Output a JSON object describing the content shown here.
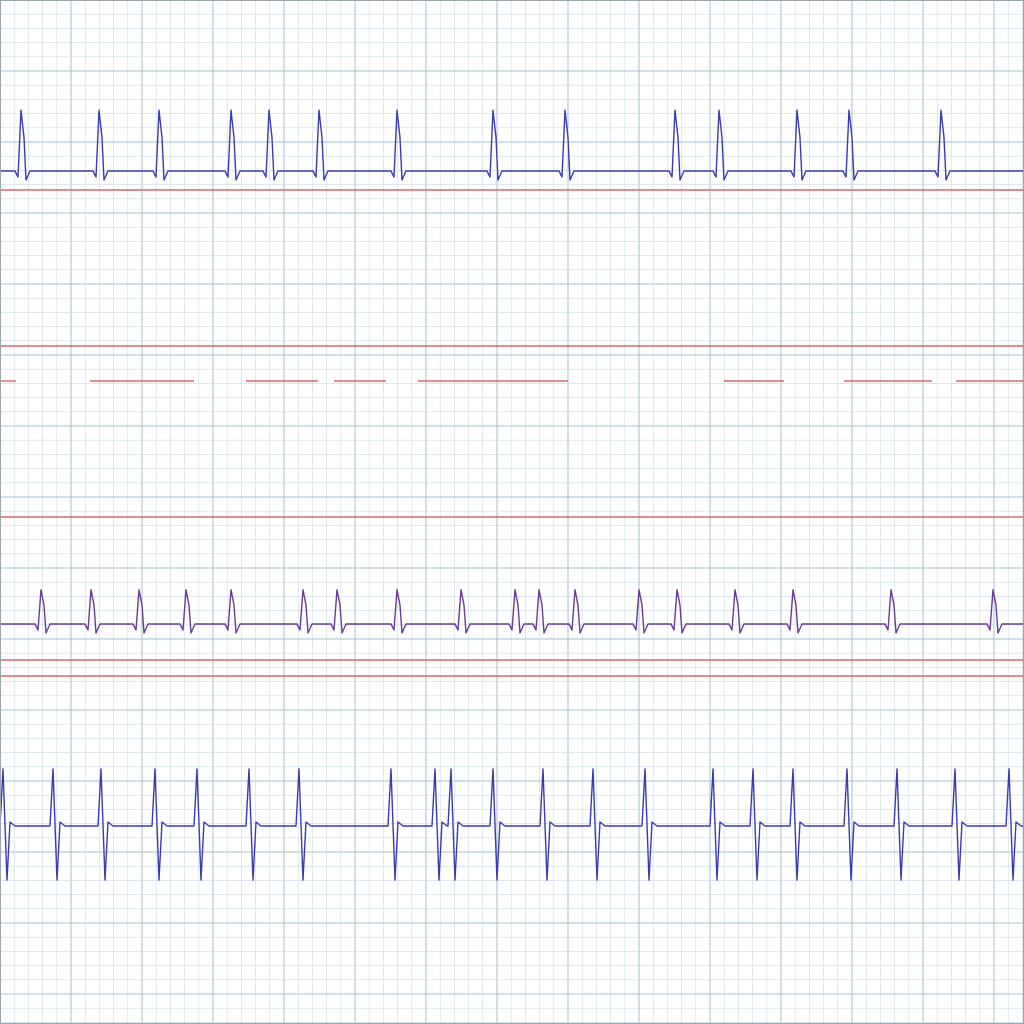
{
  "chart_data": {
    "type": "line",
    "title": "",
    "xlabel": "",
    "ylabel": "",
    "grid": true,
    "colors": {
      "paper": "#ffffff",
      "grid_minor": "#c9dce3",
      "grid_major": "#9fc0cc",
      "trace_blue": "#3a3ab8",
      "trace_purple": "#6a3a9a",
      "baseline_red": "#d24a4a"
    },
    "leads": [
      {
        "id": "lead-1",
        "color": "#3a3ab8",
        "polarity": "up",
        "amplitude": 1.6,
        "beats_x": [
          22,
          100,
          160,
          232,
          270,
          320,
          398,
          494,
          566,
          676,
          720,
          798,
          850,
          942
        ]
      },
      {
        "id": "lead-3",
        "color": "#6a3a9a",
        "polarity": "up",
        "amplitude": 0.9,
        "beats_x": [
          42,
          92,
          140,
          187,
          232,
          304,
          338,
          398,
          462,
          516,
          540,
          576,
          640,
          678,
          736,
          794,
          892,
          994
        ]
      },
      {
        "id": "lead-4",
        "color": "#3a3ab8",
        "polarity": "biphasic",
        "amplitude": 1.5,
        "beats_x": [
          6,
          56,
          104,
          158,
          200,
          252,
          302,
          394,
          438,
          454,
          496,
          546,
          596,
          648,
          716,
          756,
          796,
          850,
          900,
          958,
          1012
        ]
      }
    ],
    "baselines": [
      {
        "id": "baseline-1",
        "color": "#d24a4a",
        "segments": [
          [
            0,
            1024
          ]
        ]
      },
      {
        "id": "baseline-2a",
        "color": "#d24a4a",
        "segments": [
          [
            0,
            1024
          ]
        ]
      },
      {
        "id": "baseline-2b",
        "color": "#d24a4a",
        "segments": [
          [
            0,
            16
          ],
          [
            90,
            194
          ],
          [
            246,
            318
          ],
          [
            334,
            386
          ],
          [
            418,
            568
          ],
          [
            724,
            784
          ],
          [
            844,
            932
          ],
          [
            956,
            1024
          ]
        ]
      },
      {
        "id": "baseline-3",
        "color": "#d24a4a",
        "segments": [
          [
            0,
            1024
          ]
        ]
      },
      {
        "id": "baseline-4",
        "color": "#d24a4a",
        "segments": [
          [
            0,
            1024
          ]
        ]
      },
      {
        "id": "baseline-5",
        "color": "#d24a4a",
        "segments": [
          [
            0,
            1024
          ]
        ]
      }
    ]
  }
}
